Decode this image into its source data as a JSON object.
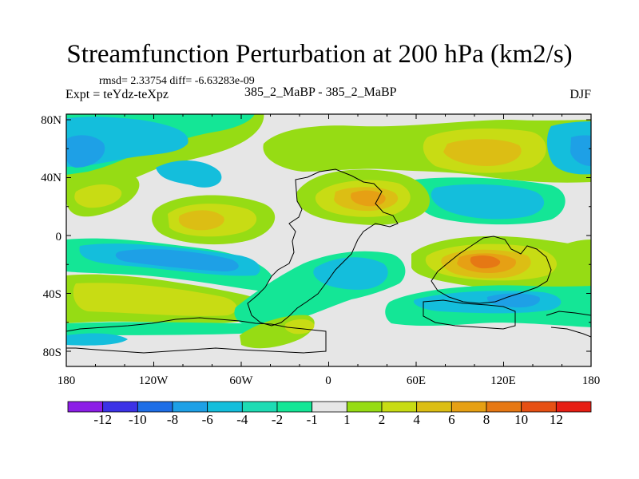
{
  "title": "Streamfunction Perturbation at 200 hPa (km2/s)",
  "stats": "rmsd= 2.33754 diff= -6.63283e-09",
  "experiment": "Expt = teYdz-teXpz",
  "case_pair": "385_2_MaBP - 385_2_MaBP",
  "season": "DJF",
  "axes": {
    "lat_labels": [
      "80N",
      "40N",
      "0",
      "40S",
      "80S"
    ],
    "lon_labels": [
      "180",
      "120W",
      "60W",
      "0",
      "60E",
      "120E",
      "180"
    ]
  },
  "colorbar": {
    "labels": [
      "-12",
      "-10",
      "-8",
      "-6",
      "-4",
      "-2",
      "-1",
      "1",
      "2",
      "4",
      "6",
      "8",
      "10",
      "12"
    ],
    "colors": [
      "#8c1ee6",
      "#3c32e6",
      "#1e6ee6",
      "#1ea0e6",
      "#14bedc",
      "#1edcb4",
      "#14e696",
      "#e6e6e6",
      "#96dc14",
      "#c8dc14",
      "#dcbe14",
      "#e6a014",
      "#e67814",
      "#e65014",
      "#e61e14"
    ]
  }
}
